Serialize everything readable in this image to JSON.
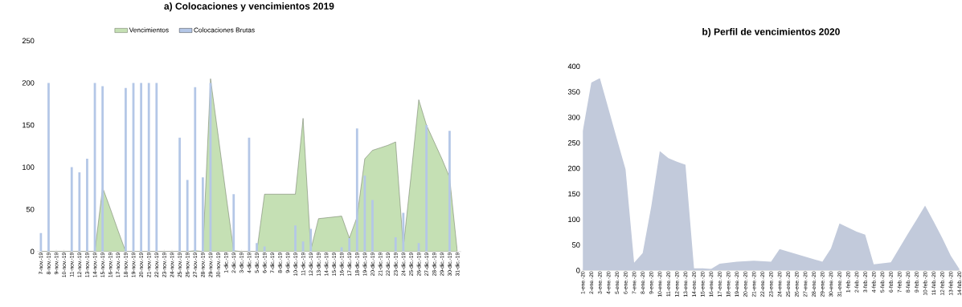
{
  "chart_data": [
    {
      "type": "bar",
      "title": "a) Colocaciones y vencimientos 2019",
      "legend": "top",
      "ylim": [
        0,
        250
      ],
      "yticks": [
        0,
        50,
        100,
        150,
        200,
        250
      ],
      "grid": false,
      "categories": [
        "7-nov.-19",
        "8-nov.-19",
        "9-nov.-19",
        "10-nov.-19",
        "11-nov.-19",
        "12-nov.-19",
        "13-nov.-19",
        "14-nov.-19",
        "15-nov.-19",
        "16-nov.-19",
        "17-nov.-19",
        "18-nov.-19",
        "19-nov.-19",
        "20-nov.-19",
        "21-nov.-19",
        "22-nov.-19",
        "23-nov.-19",
        "24-nov.-19",
        "25-nov.-19",
        "26-nov.-19",
        "27-nov.-19",
        "28-nov.-19",
        "29-nov.-19",
        "30-nov.-19",
        "1-dic.-19",
        "2-dic.-19",
        "3-dic.-19",
        "4-dic.-19",
        "5-dic.-19",
        "6-dic.-19",
        "7-dic.-19",
        "8-dic.-19",
        "9-dic.-19",
        "10-dic.-19",
        "11-dic.-19",
        "12-dic.-19",
        "13-dic.-19",
        "14-dic.-19",
        "15-dic.-19",
        "16-dic.-19",
        "17-dic.-19",
        "18-dic.-19",
        "19-dic.-19",
        "20-dic.-19",
        "21-dic.-19",
        "22-dic.-19",
        "23-dic.-19",
        "24-dic.-19",
        "25-dic.-19",
        "26-dic.-19",
        "27-dic.-19",
        "28-dic.-19",
        "29-dic.-19",
        "30-dic.-19",
        "31-dic.-19"
      ],
      "series": [
        {
          "name": "Vencimientos",
          "type": "area",
          "color": "#c5e0b4",
          "line_style": "solid",
          "values": [
            0,
            0,
            0,
            0,
            0,
            0,
            0,
            0,
            76,
            51,
            25,
            0,
            0,
            0,
            0,
            0,
            0,
            0,
            0,
            0,
            1,
            0,
            205,
            137,
            68,
            1,
            0,
            0,
            0,
            68,
            68,
            68,
            68,
            68,
            158,
            2,
            39,
            40,
            41,
            42,
            16,
            41,
            110,
            120,
            123,
            126,
            130,
            5,
            90,
            180,
            150,
            130,
            110,
            88,
            0
          ]
        },
        {
          "name": "Colocaciones Brutas",
          "type": "bar",
          "color": "#b4c7e7",
          "values": [
            22,
            200,
            0,
            0,
            100,
            94,
            110,
            200,
            196,
            0,
            0,
            194,
            200,
            200,
            200,
            200,
            0,
            0,
            135,
            85,
            195,
            88,
            200,
            0,
            0,
            68,
            0,
            135,
            10,
            6,
            0,
            0,
            0,
            31,
            12,
            27,
            0,
            0,
            0,
            5,
            16,
            146,
            90,
            61,
            0,
            0,
            17,
            46,
            0,
            10,
            150,
            0,
            0,
            143,
            null
          ]
        }
      ]
    },
    {
      "type": "area",
      "title": "b) Perfil de vencimientos 2020",
      "ylim": [
        0,
        400
      ],
      "yticks": [
        0,
        50,
        100,
        150,
        200,
        250,
        300,
        350,
        400
      ],
      "grid": false,
      "color": "#c2cadb",
      "categories": [
        "1-ene.-20",
        "2-ene.-20",
        "3-ene.-20",
        "4-ene.-20",
        "5-ene.-20",
        "6-ene.-20",
        "7-ene.-20",
        "8-ene.-20",
        "9-ene.-20",
        "10-ene.-20",
        "11-ene.-20",
        "12-ene.-20",
        "13-ene.-20",
        "14-ene.-20",
        "15-ene.-20",
        "16-ene.-20",
        "17-ene.-20",
        "18-ene.-20",
        "19-ene.-20",
        "20-ene.-20",
        "21-ene.-20",
        "22-ene.-20",
        "23-ene.-20",
        "24-ene.-20",
        "25-ene.-20",
        "26-ene.-20",
        "27-ene.-20",
        "28-ene.-20",
        "29-ene.-20",
        "30-ene.-20",
        "31-ene.-20",
        "1-feb.-20",
        "2-feb.-20",
        "3-feb.-20",
        "4-feb.-20",
        "5-feb.-20",
        "6-feb.-20",
        "7-feb.-20",
        "8-feb.-20",
        "9-feb.-20",
        "10-feb.-20",
        "11-feb.-20",
        "12-feb.-20",
        "13-feb.-20",
        "14-feb.-20"
      ],
      "values": [
        273,
        368,
        377,
        317,
        257,
        198,
        15,
        34,
        125,
        234,
        220,
        213,
        207,
        4,
        4,
        3,
        13,
        15,
        17,
        18,
        19,
        18,
        17,
        42,
        37,
        32,
        27,
        22,
        17,
        43,
        92,
        84,
        76,
        70,
        12,
        14,
        16,
        44,
        72,
        99,
        127,
        96,
        64,
        29,
        3
      ]
    }
  ]
}
